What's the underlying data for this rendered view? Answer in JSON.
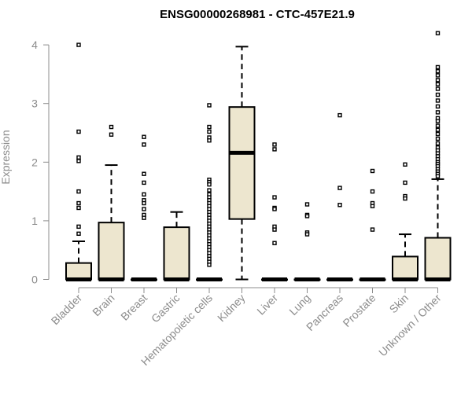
{
  "chart_data": {
    "type": "box",
    "title": "ENSG00000268981 - CTC-457E21.9",
    "ylabel": "Expression",
    "xlabel": "",
    "ylim": [
      -0.05,
      4.3
    ],
    "yticks": [
      0,
      1,
      2,
      3,
      4
    ],
    "box_fill": "#ede6cf",
    "axis_color": "#8c8c8c",
    "categories": [
      "Bladder",
      "Brain",
      "Breast",
      "Gastric",
      "Hematopoietic cells",
      "Kidney",
      "Liver",
      "Lung",
      "Pancreas",
      "Prostate",
      "Skin",
      "Unknown / Other"
    ],
    "boxes": [
      {
        "q1": 0,
        "median": 0,
        "q3": 0.28,
        "whisker_low": 0,
        "whisker_high": 0.65,
        "outliers": [
          4.0,
          2.52,
          2.08,
          2.02,
          1.5,
          1.3,
          1.22,
          0.9,
          0.78
        ]
      },
      {
        "q1": 0,
        "median": 0,
        "q3": 0.97,
        "whisker_low": 0,
        "whisker_high": 1.95,
        "outliers": [
          2.6,
          2.47
        ]
      },
      {
        "q1": 0,
        "median": 0,
        "q3": 0,
        "whisker_low": 0,
        "whisker_high": 0,
        "outliers": [
          2.43,
          2.3,
          1.8,
          1.65,
          1.45,
          1.35,
          1.3,
          1.2,
          1.1,
          1.05
        ]
      },
      {
        "q1": 0,
        "median": 0,
        "q3": 0.89,
        "whisker_low": 0,
        "whisker_high": 1.15,
        "outliers": []
      },
      {
        "q1": 0,
        "median": 0,
        "q3": 0,
        "whisker_low": 0,
        "whisker_high": 0,
        "outliers": [
          2.97,
          2.6,
          2.52,
          2.42,
          2.37,
          1.7,
          1.66,
          1.62,
          1.52,
          1.45,
          1.4,
          1.35,
          1.3,
          1.25,
          1.2,
          1.15,
          1.1,
          1.05,
          1.0,
          0.95,
          0.9,
          0.85,
          0.8,
          0.75,
          0.7,
          0.65,
          0.6,
          0.55,
          0.5,
          0.45,
          0.4,
          0.35,
          0.3,
          0.25
        ]
      },
      {
        "q1": 1.03,
        "median": 2.16,
        "q3": 2.94,
        "whisker_low": 0,
        "whisker_high": 3.97,
        "outliers": []
      },
      {
        "q1": 0,
        "median": 0,
        "q3": 0,
        "whisker_low": 0,
        "whisker_high": 0,
        "outliers": [
          2.3,
          2.22,
          1.4,
          1.22,
          1.2,
          0.9,
          0.85,
          0.62
        ]
      },
      {
        "q1": 0,
        "median": 0,
        "q3": 0,
        "whisker_low": 0,
        "whisker_high": 0,
        "outliers": [
          1.28,
          1.1,
          1.08,
          0.8,
          0.77
        ]
      },
      {
        "q1": 0,
        "median": 0,
        "q3": 0,
        "whisker_low": 0,
        "whisker_high": 0,
        "outliers": [
          2.8,
          1.56,
          1.27
        ]
      },
      {
        "q1": 0,
        "median": 0,
        "q3": 0,
        "whisker_low": 0,
        "whisker_high": 0,
        "outliers": [
          1.85,
          1.5,
          1.3,
          1.25,
          0.85
        ]
      },
      {
        "q1": 0,
        "median": 0,
        "q3": 0.39,
        "whisker_low": 0,
        "whisker_high": 0.77,
        "outliers": [
          1.96,
          1.65,
          1.42,
          1.38
        ]
      },
      {
        "q1": 0,
        "median": 0,
        "q3": 0.71,
        "whisker_low": 0,
        "whisker_high": 1.71,
        "outliers": [
          4.2,
          3.62,
          3.55,
          3.48,
          3.4,
          3.33,
          3.25,
          3.15,
          3.05,
          2.95,
          2.85,
          2.75,
          2.7,
          2.62,
          2.55,
          2.48,
          2.4,
          2.32,
          2.25,
          2.2,
          2.15,
          2.1,
          2.05,
          2.0,
          1.97,
          1.93,
          1.88,
          1.84,
          1.8,
          1.76
        ]
      }
    ]
  }
}
